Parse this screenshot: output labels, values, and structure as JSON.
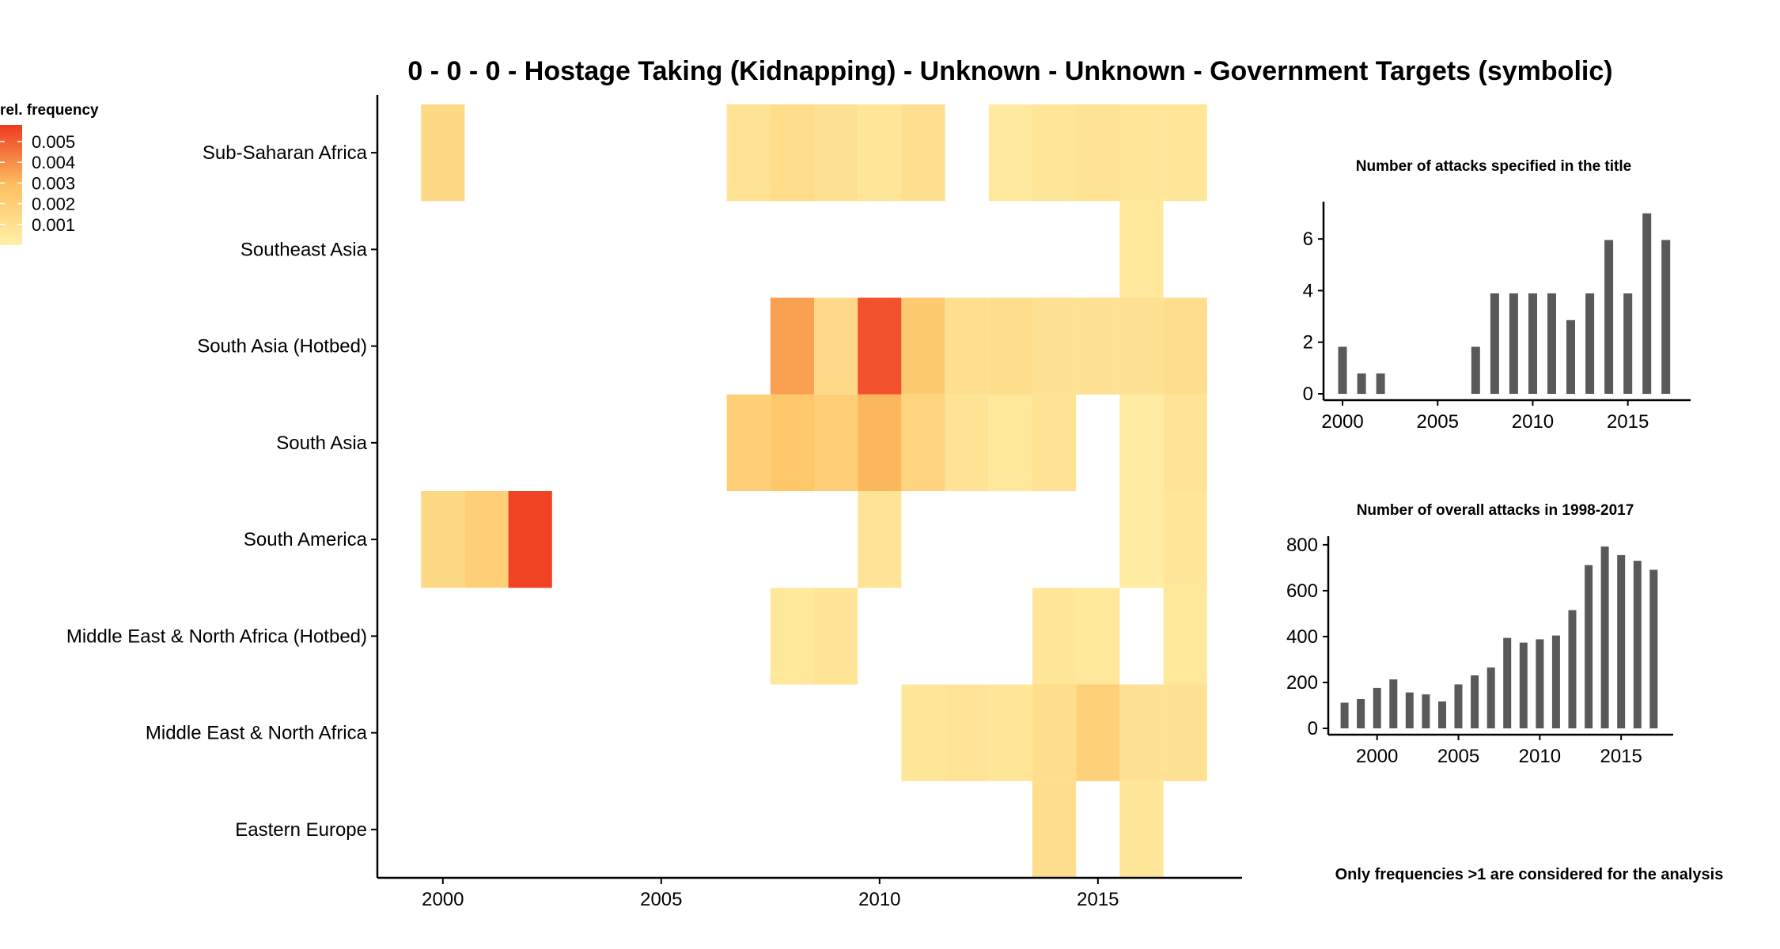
{
  "chart_data": [
    {
      "type": "heatmap",
      "title": "0 - 0 - 0 - Hostage Taking (Kidnapping) - Unknown - Unknown - Government Targets (symbolic)",
      "xlabel": "",
      "ylabel": "",
      "x_range": [
        1998.5,
        2018.3
      ],
      "x_ticks": [
        2000,
        2005,
        2010,
        2015
      ],
      "y_categories": [
        "Sub-Saharan Africa",
        "Southeast Asia",
        "South Asia (Hotbed)",
        "South Asia",
        "South America",
        "Middle East & North Africa (Hotbed)",
        "Middle East & North Africa",
        "Eastern Europe"
      ],
      "legend": {
        "title": "rel. frequency",
        "labels": [
          "0.005",
          "0.004",
          "0.003",
          "0.002",
          "0.001"
        ],
        "placement": "top-left",
        "color_low": "#fff0a8",
        "color_high": "#ee3a20",
        "value_max": 0.0058
      },
      "cells": [
        {
          "region": "Sub-Saharan Africa",
          "year": 2000,
          "value": 0.0014
        },
        {
          "region": "Sub-Saharan Africa",
          "year": 2007,
          "value": 0.0008
        },
        {
          "region": "Sub-Saharan Africa",
          "year": 2008,
          "value": 0.0012
        },
        {
          "region": "Sub-Saharan Africa",
          "year": 2009,
          "value": 0.0009
        },
        {
          "region": "Sub-Saharan Africa",
          "year": 2010,
          "value": 0.0006
        },
        {
          "region": "Sub-Saharan Africa",
          "year": 2011,
          "value": 0.001
        },
        {
          "region": "Sub-Saharan Africa",
          "year": 2013,
          "value": 0.0004
        },
        {
          "region": "Sub-Saharan Africa",
          "year": 2014,
          "value": 0.0006
        },
        {
          "region": "Sub-Saharan Africa",
          "year": 2015,
          "value": 0.0008
        },
        {
          "region": "Sub-Saharan Africa",
          "year": 2016,
          "value": 0.0006
        },
        {
          "region": "Sub-Saharan Africa",
          "year": 2017,
          "value": 0.0006
        },
        {
          "region": "Southeast Asia",
          "year": 2016,
          "value": 0.0005
        },
        {
          "region": "South Asia (Hotbed)",
          "year": 2008,
          "value": 0.0036
        },
        {
          "region": "South Asia (Hotbed)",
          "year": 2009,
          "value": 0.0013
        },
        {
          "region": "South Asia (Hotbed)",
          "year": 2010,
          "value": 0.0053
        },
        {
          "region": "South Asia (Hotbed)",
          "year": 2011,
          "value": 0.0023
        },
        {
          "region": "South Asia (Hotbed)",
          "year": 2012,
          "value": 0.001
        },
        {
          "region": "South Asia (Hotbed)",
          "year": 2013,
          "value": 0.0011
        },
        {
          "region": "South Asia (Hotbed)",
          "year": 2014,
          "value": 0.0009
        },
        {
          "region": "South Asia (Hotbed)",
          "year": 2015,
          "value": 0.0009
        },
        {
          "region": "South Asia (Hotbed)",
          "year": 2016,
          "value": 0.0009
        },
        {
          "region": "South Asia (Hotbed)",
          "year": 2017,
          "value": 0.0011
        },
        {
          "region": "South Asia",
          "year": 2007,
          "value": 0.002
        },
        {
          "region": "South Asia",
          "year": 2008,
          "value": 0.0025
        },
        {
          "region": "South Asia",
          "year": 2009,
          "value": 0.002
        },
        {
          "region": "South Asia",
          "year": 2010,
          "value": 0.0031
        },
        {
          "region": "South Asia",
          "year": 2011,
          "value": 0.0017
        },
        {
          "region": "South Asia",
          "year": 2012,
          "value": 0.0008
        },
        {
          "region": "South Asia",
          "year": 2013,
          "value": 0.0005
        },
        {
          "region": "South Asia",
          "year": 2014,
          "value": 0.0008
        },
        {
          "region": "South Asia",
          "year": 2016,
          "value": 0.0003
        },
        {
          "region": "South Asia",
          "year": 2017,
          "value": 0.0007
        },
        {
          "region": "South America",
          "year": 2000,
          "value": 0.0014
        },
        {
          "region": "South America",
          "year": 2001,
          "value": 0.002
        },
        {
          "region": "South America",
          "year": 2002,
          "value": 0.0056
        },
        {
          "region": "South America",
          "year": 2010,
          "value": 0.0007
        },
        {
          "region": "South America",
          "year": 2016,
          "value": 0.0003
        },
        {
          "region": "South America",
          "year": 2017,
          "value": 0.0006
        },
        {
          "region": "Middle East & North Africa (Hotbed)",
          "year": 2008,
          "value": 0.0005
        },
        {
          "region": "Middle East & North Africa (Hotbed)",
          "year": 2009,
          "value": 0.0007
        },
        {
          "region": "Middle East & North Africa (Hotbed)",
          "year": 2014,
          "value": 0.0006
        },
        {
          "region": "Middle East & North Africa (Hotbed)",
          "year": 2015,
          "value": 0.0005
        },
        {
          "region": "Middle East & North Africa (Hotbed)",
          "year": 2017,
          "value": 0.0005
        },
        {
          "region": "Middle East & North Africa",
          "year": 2011,
          "value": 0.0006
        },
        {
          "region": "Middle East & North Africa",
          "year": 2012,
          "value": 0.0007
        },
        {
          "region": "Middle East & North Africa",
          "year": 2013,
          "value": 0.0006
        },
        {
          "region": "Middle East & North Africa",
          "year": 2014,
          "value": 0.0011
        },
        {
          "region": "Middle East & North Africa",
          "year": 2015,
          "value": 0.0019
        },
        {
          "region": "Middle East & North Africa",
          "year": 2016,
          "value": 0.0009
        },
        {
          "region": "Middle East & North Africa",
          "year": 2017,
          "value": 0.0009
        },
        {
          "region": "Eastern Europe",
          "year": 2014,
          "value": 0.0011
        },
        {
          "region": "Eastern Europe",
          "year": 2016,
          "value": 0.0006
        }
      ]
    },
    {
      "type": "bar",
      "title": "Number of attacks specified in the title",
      "xlabel": "",
      "ylabel": "",
      "x": [
        2000,
        2001,
        2002,
        2007,
        2008,
        2009,
        2010,
        2011,
        2012,
        2013,
        2014,
        2015,
        2016,
        2017
      ],
      "values": [
        2,
        1,
        1,
        2,
        4,
        4,
        4,
        4,
        3,
        4,
        6,
        4,
        7,
        6
      ],
      "x_range": [
        1999,
        2018.3
      ],
      "x_ticks": [
        2000,
        2005,
        2010,
        2015
      ],
      "ylim": [
        0,
        7.2
      ],
      "y_ticks": [
        0,
        2,
        4,
        6
      ],
      "bar_color": "#595959"
    },
    {
      "type": "bar",
      "title": "Number of overall attacks in 1998-2017",
      "xlabel": "",
      "ylabel": "",
      "x": [
        1998,
        1999,
        2000,
        2001,
        2002,
        2003,
        2004,
        2005,
        2006,
        2007,
        2008,
        2009,
        2010,
        2011,
        2012,
        2013,
        2014,
        2015,
        2016,
        2017
      ],
      "values": [
        135,
        150,
        197,
        233,
        178,
        170,
        140,
        212,
        250,
        283,
        408,
        388,
        402,
        418,
        525,
        715,
        793,
        757,
        733,
        695
      ],
      "x_range": [
        1997,
        2018.2
      ],
      "x_ticks": [
        2000,
        2005,
        2010,
        2015
      ],
      "ylim": [
        0,
        810
      ],
      "y_ticks": [
        0,
        200,
        400,
        600,
        800
      ],
      "bar_color": "#595959"
    }
  ],
  "note": "Only frequencies >1 are considered for the analysis"
}
